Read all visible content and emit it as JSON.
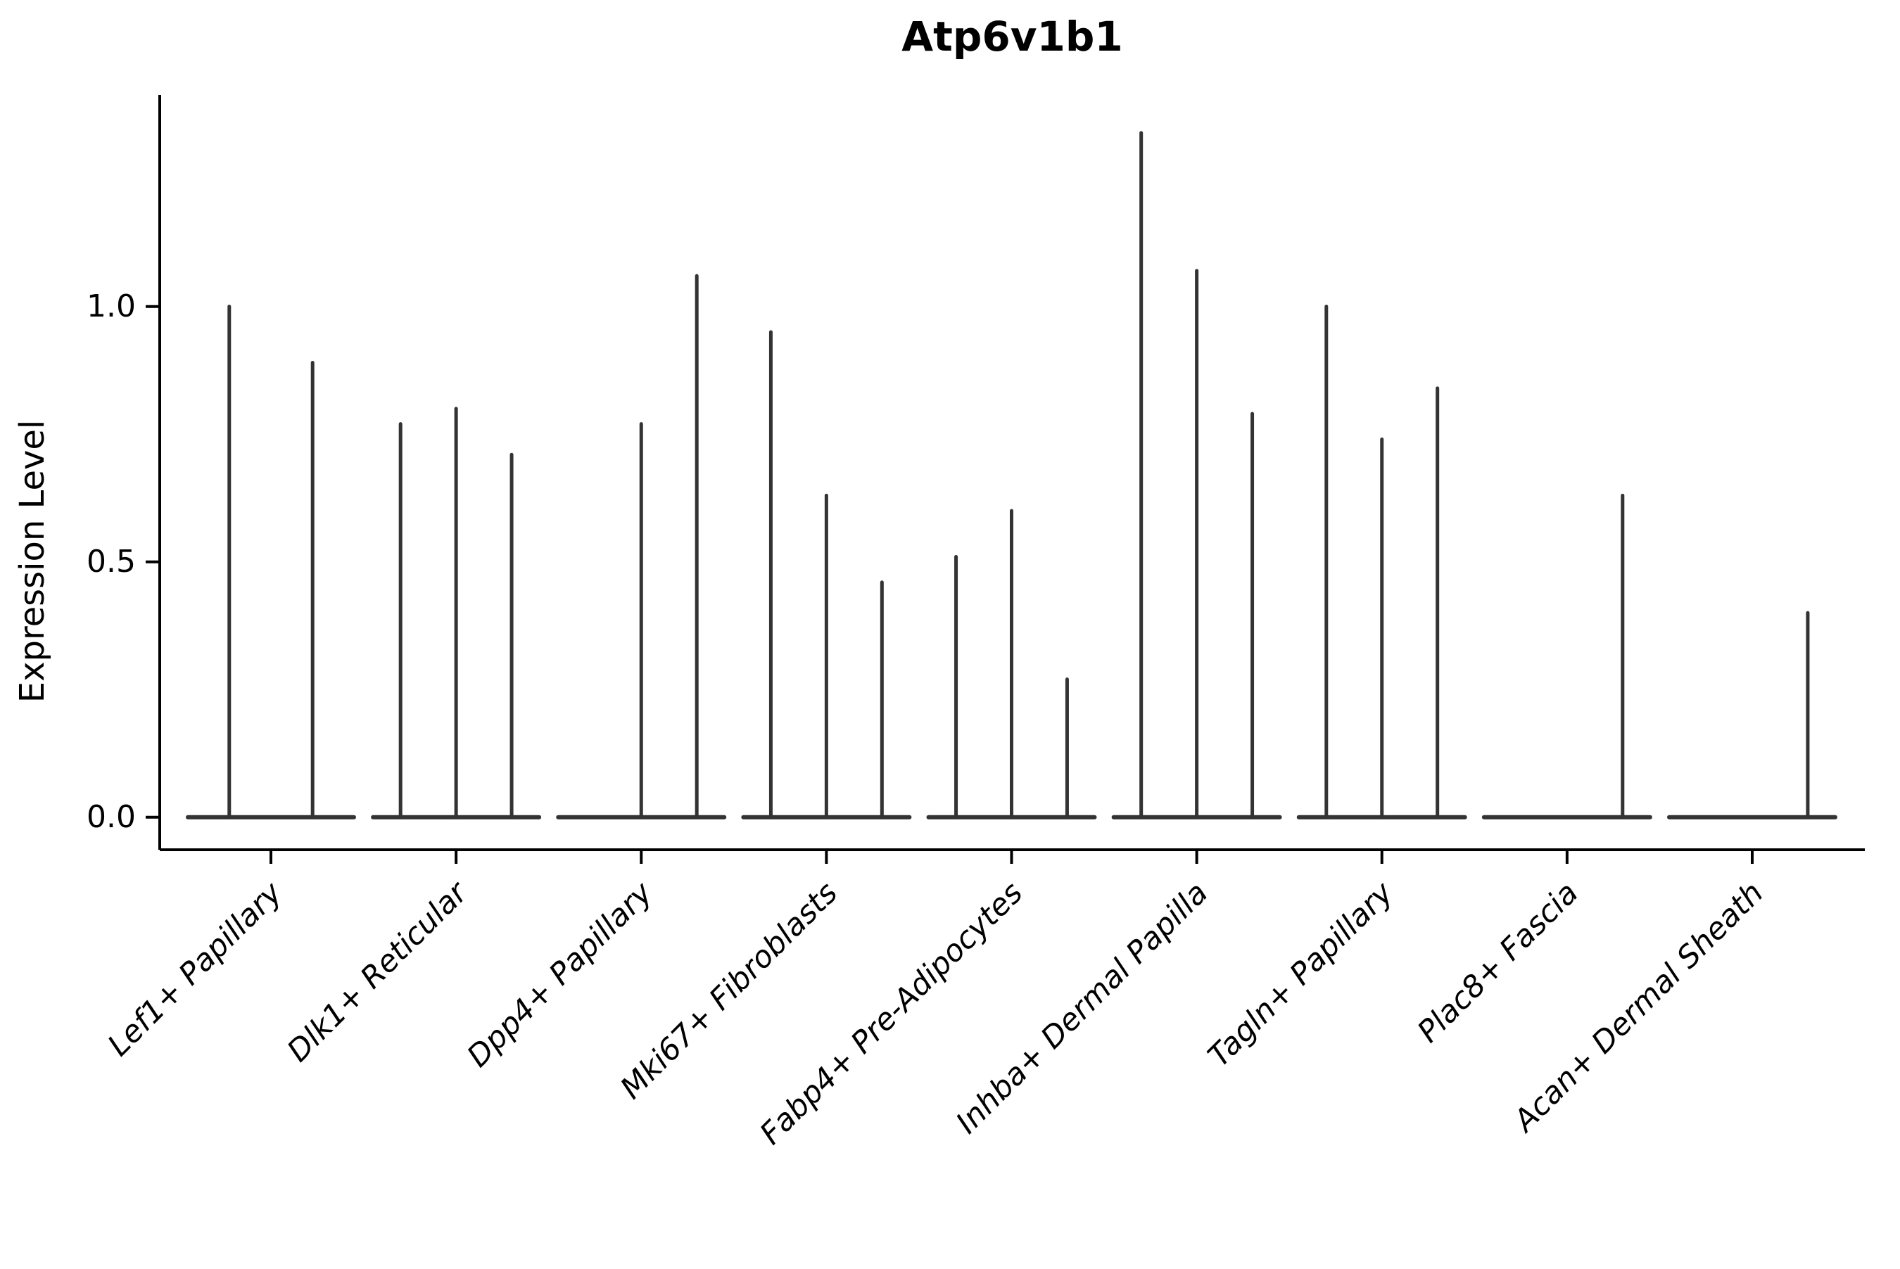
{
  "chart_data": {
    "type": "violin",
    "title": "Atp6v1b1",
    "xlabel": "",
    "ylabel": "Expression Level",
    "yticks": [
      0.0,
      0.5,
      1.0
    ],
    "ytick_labels": [
      "0.0",
      "0.5",
      "1.0"
    ],
    "ylim": [
      -0.064,
      1.414
    ],
    "grid": false,
    "legend": "none",
    "colors": {
      "violin": "#333333",
      "axis": "#000000",
      "text": "#000000",
      "background": "#ffffff"
    },
    "categories": [
      "Lef1+ Papillary",
      "Dlk1+ Reticular",
      "Dpp4+ Papillary",
      "Mki67+ Fibroblasts",
      "Fabp4+ Pre-Adipocytes",
      "Inhba+ Dermal Papilla",
      "Tagln+ Papillary",
      "Plac8+ Fascia",
      "Acan+ Dermal Sheath"
    ],
    "groups": [
      {
        "label": "Lef1+ Papillary",
        "violins": [
          {
            "offset": -0.225,
            "max": 1.0
          },
          {
            "offset": 0.225,
            "max": 0.89
          }
        ]
      },
      {
        "label": "Dlk1+ Reticular",
        "violins": [
          {
            "offset": -0.3,
            "max": 0.77
          },
          {
            "offset": 0,
            "max": 0.8
          },
          {
            "offset": 0.3,
            "max": 0.71
          }
        ]
      },
      {
        "label": "Dpp4+ Papillary",
        "violins": [
          {
            "offset": -0.3,
            "max": 0.0
          },
          {
            "offset": 0,
            "max": 0.77
          },
          {
            "offset": 0.3,
            "max": 1.06
          }
        ]
      },
      {
        "label": "Mki67+ Fibroblasts",
        "violins": [
          {
            "offset": -0.3,
            "max": 0.95
          },
          {
            "offset": 0,
            "max": 0.63
          },
          {
            "offset": 0.3,
            "max": 0.46
          }
        ]
      },
      {
        "label": "Fabp4+ Pre-Adipocytes",
        "violins": [
          {
            "offset": -0.3,
            "max": 0.51
          },
          {
            "offset": 0,
            "max": 0.6
          },
          {
            "offset": 0.3,
            "max": 0.27
          }
        ]
      },
      {
        "label": "Inhba+ Dermal Papilla",
        "violins": [
          {
            "offset": -0.3,
            "max": 1.34
          },
          {
            "offset": 0,
            "max": 1.07
          },
          {
            "offset": 0.3,
            "max": 0.79
          }
        ]
      },
      {
        "label": "Tagln+ Papillary",
        "violins": [
          {
            "offset": -0.3,
            "max": 1.0
          },
          {
            "offset": 0,
            "max": 0.74
          },
          {
            "offset": 0.3,
            "max": 0.84
          }
        ]
      },
      {
        "label": "Plac8+ Fascia",
        "violins": [
          {
            "offset": -0.3,
            "max": 0.0
          },
          {
            "offset": 0,
            "max": 0.0
          },
          {
            "offset": 0.3,
            "max": 0.63
          }
        ]
      },
      {
        "label": "Acan+ Dermal Sheath",
        "violins": [
          {
            "offset": -0.3,
            "max": 0.0
          },
          {
            "offset": 0,
            "max": 0.0
          },
          {
            "offset": 0.3,
            "max": 0.4
          }
        ]
      }
    ]
  }
}
